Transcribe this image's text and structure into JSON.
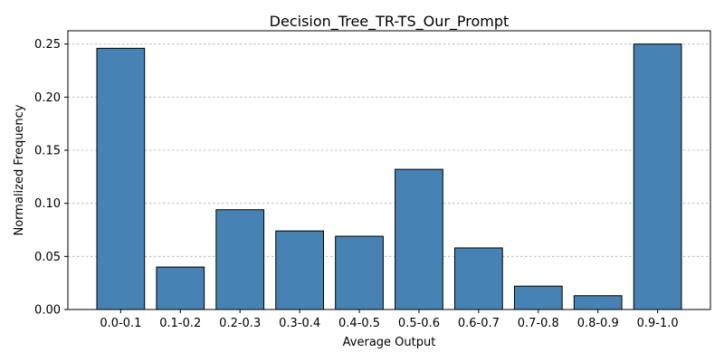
{
  "chart_data": {
    "type": "bar",
    "title": "Decision_Tree_TR-TS_Our_Prompt",
    "xlabel": "Average Output",
    "ylabel": "Normalized Frequency",
    "categories": [
      "0.0-0.1",
      "0.1-0.2",
      "0.2-0.3",
      "0.3-0.4",
      "0.4-0.5",
      "0.5-0.6",
      "0.6-0.7",
      "0.7-0.8",
      "0.8-0.9",
      "0.9-1.0"
    ],
    "values": [
      0.246,
      0.04,
      0.094,
      0.074,
      0.069,
      0.132,
      0.058,
      0.022,
      0.013,
      0.25
    ],
    "ylim": [
      0,
      0.2625
    ],
    "yticks": [
      "0.00",
      "0.05",
      "0.10",
      "0.15",
      "0.20",
      "0.25"
    ],
    "grid": "y-dashed",
    "bar_color": "#4682b4",
    "edge_color": "#000000"
  }
}
